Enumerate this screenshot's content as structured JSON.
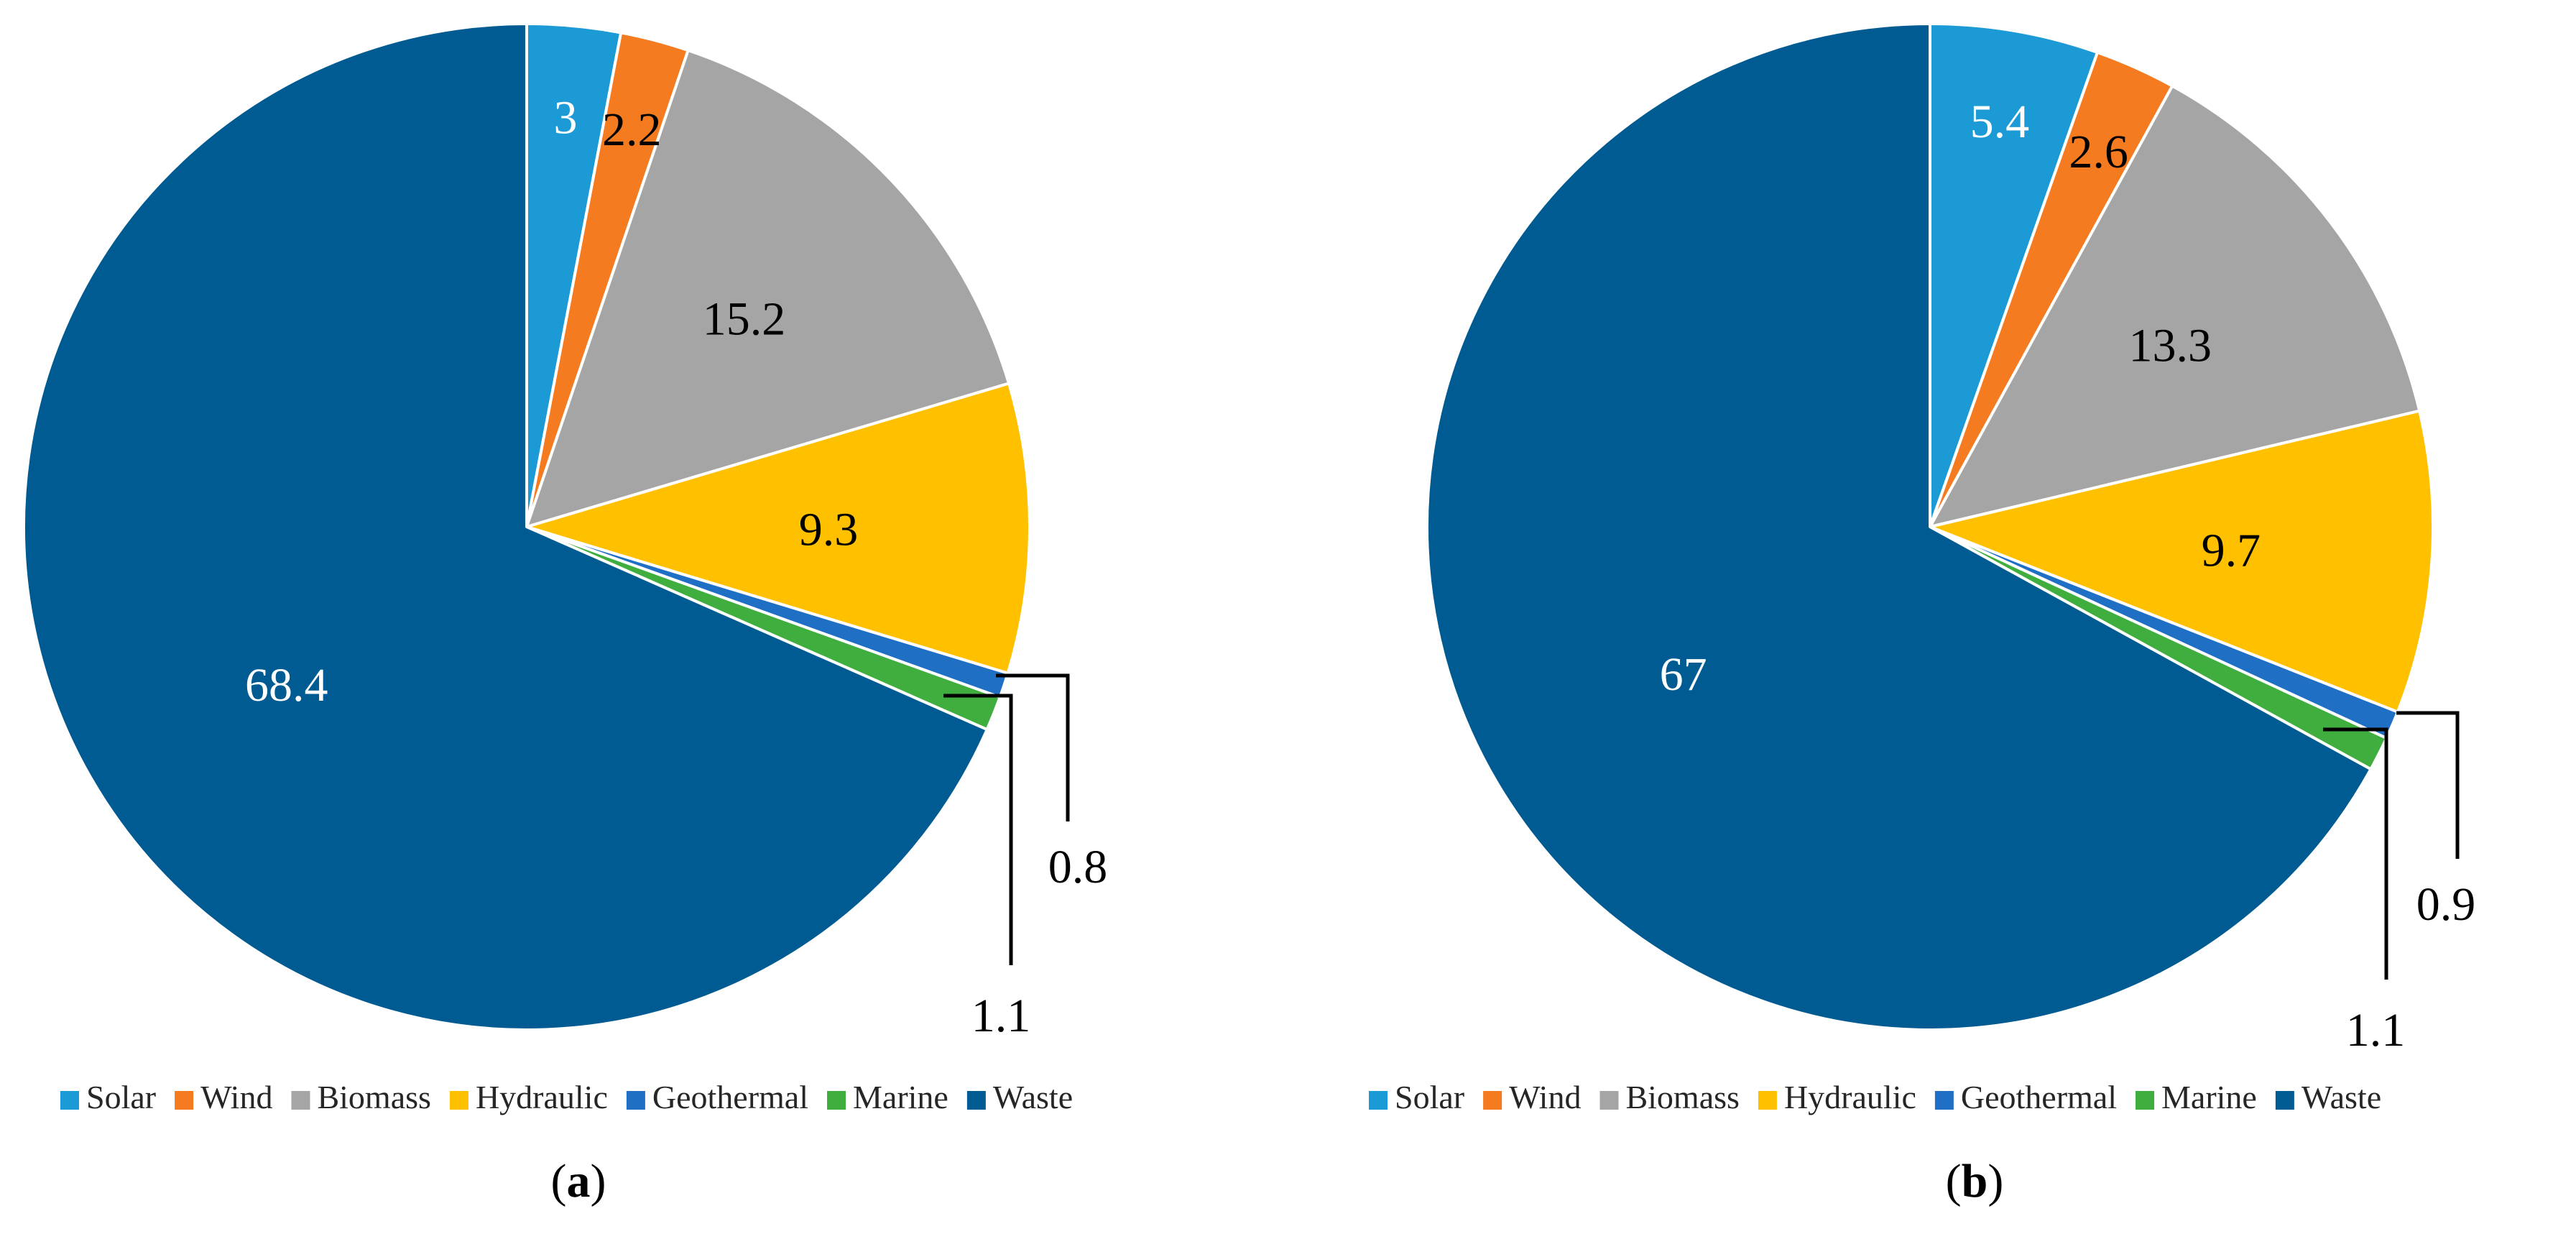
{
  "colors": {
    "Solar": "#1b9ad6",
    "Wind": "#f47b20",
    "Biomass": "#a5a5a5",
    "Hydraulic": "#ffc000",
    "Geothermal": "#1f6fc5",
    "Marine": "#3fae3f",
    "Waste": "#005b92"
  },
  "chart_data": [
    {
      "type": "pie",
      "panel_label": "a",
      "categories": [
        "Solar",
        "Wind",
        "Biomass",
        "Hydraulic",
        "Geothermal",
        "Marine",
        "Waste"
      ],
      "values": [
        3,
        2.2,
        15.2,
        9.3,
        0.8,
        1.1,
        68.4
      ],
      "data_labels": [
        "3",
        "2.2",
        "15.2",
        "9.3",
        "0.8",
        "1.1",
        "68.4"
      ],
      "legend": [
        "Solar",
        "Wind",
        "Biomass",
        "Hydraulic",
        "Geothermal",
        "Marine",
        "Waste"
      ],
      "legend_position": "bottom"
    },
    {
      "type": "pie",
      "panel_label": "b",
      "categories": [
        "Solar",
        "Wind",
        "Biomass",
        "Hydraulic",
        "Geothermal",
        "Marine",
        "Waste"
      ],
      "values": [
        5.4,
        2.6,
        13.3,
        9.7,
        0.9,
        1.1,
        67
      ],
      "data_labels": [
        "5.4",
        "2.6",
        "13.3",
        "9.7",
        "0.9",
        "1.1",
        "67"
      ],
      "legend": [
        "Solar",
        "Wind",
        "Biomass",
        "Hydraulic",
        "Geothermal",
        "Marine",
        "Waste"
      ],
      "legend_position": "bottom"
    }
  ]
}
